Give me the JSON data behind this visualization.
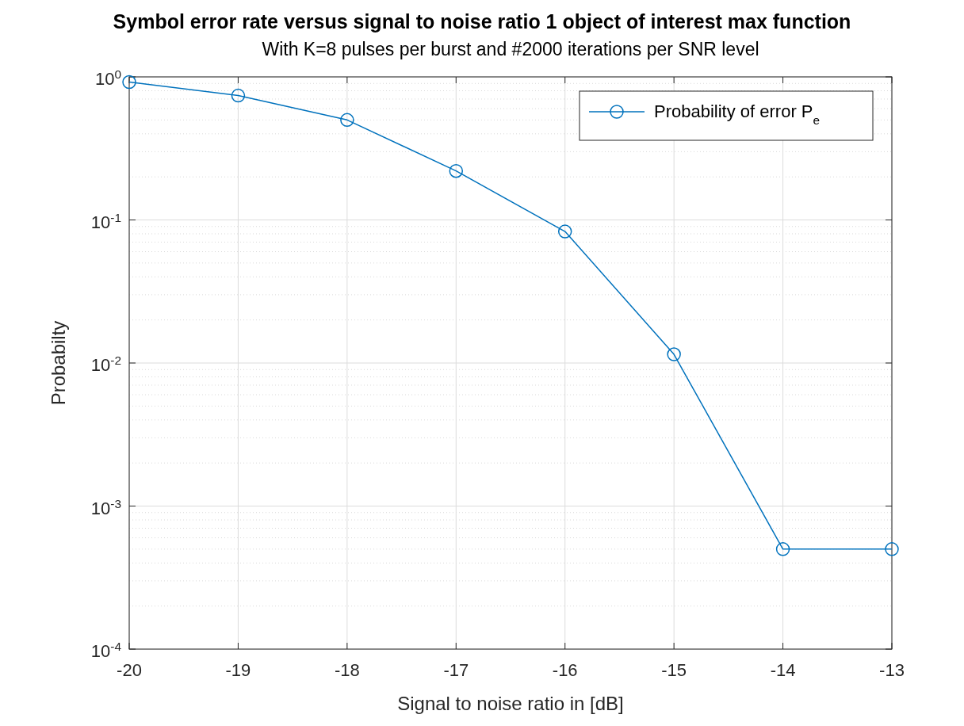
{
  "chart_data": {
    "type": "line",
    "title": "Symbol error rate versus signal to noise ratio 1 object of interest max function",
    "subtitle": "With K=8 pulses per burst and #2000 iterations per SNR level",
    "xlabel": "Signal to noise ratio in [dB]",
    "ylabel": "Probabilty",
    "x": [
      -20,
      -19,
      -18,
      -17,
      -16,
      -15,
      -14,
      -13
    ],
    "series": [
      {
        "name": "Probability of error P$_{e}$",
        "color": "#0072bd",
        "values": [
          0.92,
          0.74,
          0.5,
          0.22,
          0.083,
          0.0115,
          0.0005,
          0.0005
        ]
      }
    ],
    "xlim": [
      -20,
      -13
    ],
    "xticks": [
      -20,
      -19,
      -18,
      -17,
      -16,
      -15,
      -14,
      -13
    ],
    "ylim": [
      0.0001,
      1
    ],
    "yticks": [
      {
        "value": 0.0001,
        "label": "10$^{-4}$"
      },
      {
        "value": 0.001,
        "label": "10$^{-3}$"
      },
      {
        "value": 0.01,
        "label": "10$^{-2}$"
      },
      {
        "value": 0.1,
        "label": "10$^{-1}$"
      },
      {
        "value": 1,
        "label": "10$^{0}$"
      }
    ],
    "log": "y",
    "grid": true,
    "legend": "top right",
    "marker": "circle",
    "line_style": "solid"
  }
}
